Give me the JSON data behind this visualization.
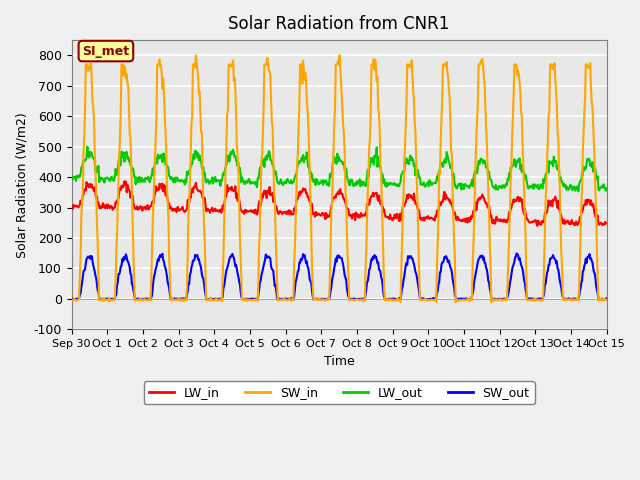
{
  "title": "Solar Radiation from CNR1",
  "xlabel": "Time",
  "ylabel": "Solar Radiation (W/m2)",
  "ylim": [
    -100,
    850
  ],
  "yticks": [
    -100,
    0,
    100,
    200,
    300,
    400,
    500,
    600,
    700,
    800
  ],
  "date_labels": [
    "Sep 30",
    "Oct 1",
    "Oct 2",
    "Oct 3",
    "Oct 4",
    "Oct 5",
    "Oct 6",
    "Oct 7",
    "Oct 8",
    "Oct 9",
    "Oct 10",
    "Oct 11",
    "Oct 12",
    "Oct 13",
    "Oct 14",
    "Oct 15"
  ],
  "legend_labels": [
    "LW_in",
    "SW_in",
    "LW_out",
    "SW_out"
  ],
  "legend_colors": [
    "#ff0000",
    "#ffa500",
    "#00cc00",
    "#0000ff"
  ],
  "annotation_text": "SI_met",
  "annotation_bg": "#ffff99",
  "annotation_border": "#8b0000",
  "annotation_text_color": "#8b0000",
  "sw_in_peak": 770,
  "sw_out_peak": 140,
  "n_days": 15,
  "pts_per_day": 48,
  "background_color": "#e8e8e8",
  "grid_color": "#ffffff",
  "line_lw": 1.5
}
